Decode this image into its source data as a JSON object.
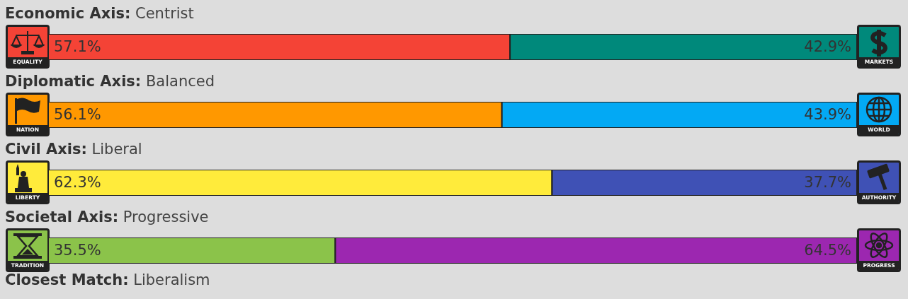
{
  "chart_data": [
    {
      "type": "bar",
      "orientation": "horizontal",
      "stacked": true,
      "title": "Economic Axis:",
      "subtitle": "Centrist",
      "categories": [
        null
      ],
      "xlim": [
        0,
        100
      ],
      "series": [
        {
          "name": "EQUALITY",
          "color": "#f44336",
          "values": [
            57.1
          ],
          "value_labels": [
            "57.1%"
          ]
        },
        {
          "name": "MARKETS",
          "color": "#00897b",
          "values": [
            42.9
          ],
          "value_labels": [
            "42.9%"
          ]
        }
      ]
    },
    {
      "type": "bar",
      "orientation": "horizontal",
      "stacked": true,
      "title": "Diplomatic Axis:",
      "subtitle": "Balanced",
      "categories": [
        null
      ],
      "xlim": [
        0,
        100
      ],
      "series": [
        {
          "name": "NATION",
          "color": "#ff9800",
          "values": [
            56.1
          ],
          "value_labels": [
            "56.1%"
          ]
        },
        {
          "name": "WORLD",
          "color": "#03a9f4",
          "values": [
            43.9
          ],
          "value_labels": [
            "43.9%"
          ]
        }
      ]
    },
    {
      "type": "bar",
      "orientation": "horizontal",
      "stacked": true,
      "title": "Civil Axis:",
      "subtitle": "Liberal",
      "categories": [
        null
      ],
      "xlim": [
        0,
        100
      ],
      "series": [
        {
          "name": "LIBERTY",
          "color": "#ffeb3b",
          "values": [
            62.3
          ],
          "value_labels": [
            "62.3%"
          ]
        },
        {
          "name": "AUTHORITY",
          "color": "#3f51b5",
          "values": [
            37.7
          ],
          "value_labels": [
            "37.7%"
          ]
        }
      ]
    },
    {
      "type": "bar",
      "orientation": "horizontal",
      "stacked": true,
      "title": "Societal Axis:",
      "subtitle": "Progressive",
      "categories": [
        null
      ],
      "xlim": [
        0,
        100
      ],
      "annotations": [
        "Closest Match: Liberalism"
      ],
      "series": [
        {
          "name": "TRADITION",
          "color": "#8bc34a",
          "values": [
            35.5
          ],
          "value_labels": [
            "35.5%"
          ]
        },
        {
          "name": "PROGRESS",
          "color": "#9c27b0",
          "values": [
            64.5
          ],
          "value_labels": [
            "64.5%"
          ]
        }
      ]
    }
  ]
}
